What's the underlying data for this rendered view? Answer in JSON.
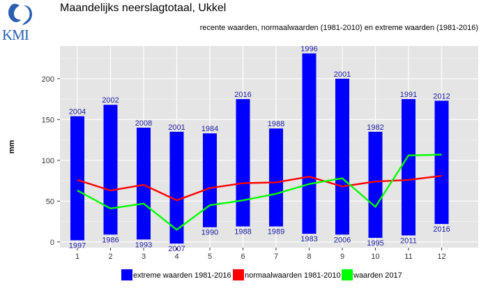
{
  "logo": {
    "text": "KMI"
  },
  "header": {
    "title": "Maandelijks neerslagtotaal, Ukkel",
    "subtitle": "recente waarden, normaalwaarden (1981-2010) en extreme waarden (1981-2016)"
  },
  "chart_data": {
    "type": "bar",
    "ylabel": "mm",
    "xlabel": "",
    "ylim": [
      -7,
      240
    ],
    "yticks": [
      0,
      50,
      100,
      150,
      200
    ],
    "categories": [
      "1",
      "2",
      "3",
      "4",
      "5",
      "6",
      "7",
      "8",
      "9",
      "10",
      "11",
      "12"
    ],
    "grid": true,
    "legend_position": "bottom",
    "colors": {
      "range": "#0000ff",
      "normal": "#ff0000",
      "recent": "#00ff00",
      "panel": "#e5e5e5",
      "label": "#1a1aa0"
    },
    "series": [
      {
        "name": "extreme waarden 1981-2016",
        "kind": "range",
        "min": [
          2,
          9,
          3,
          -2,
          18,
          19,
          19,
          10,
          9,
          5,
          8,
          22
        ],
        "max": [
          154,
          168,
          140,
          135,
          133,
          175,
          139,
          231,
          200,
          135,
          175,
          173
        ],
        "min_year": [
          "1997",
          "1986",
          "1993",
          "2007",
          "1990",
          "1988",
          "1989",
          "1983",
          "2006",
          "1995",
          "2011",
          "2016"
        ],
        "max_year": [
          "2004",
          "2002",
          "2008",
          "2001",
          "1984",
          "2016",
          "1988",
          "1996",
          "2001",
          "1982",
          "1991",
          "2012"
        ]
      },
      {
        "name": "normaalwaarden 1981-2010",
        "kind": "line",
        "values": [
          76,
          63,
          70,
          51,
          66,
          72,
          73,
          80,
          68,
          74,
          76,
          81
        ]
      },
      {
        "name": "waarden 2017",
        "kind": "line",
        "values": [
          63,
          41,
          47,
          15,
          45,
          51,
          59,
          71,
          78,
          43,
          106,
          107
        ]
      }
    ]
  }
}
